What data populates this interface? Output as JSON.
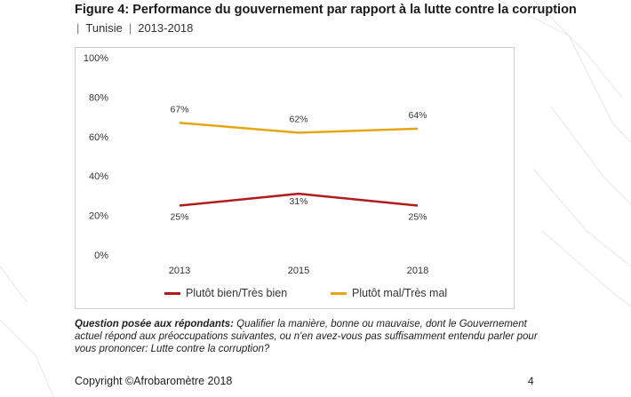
{
  "title": "Figure 4: Performance du gouvernement par rapport à la lutte contre la corruption",
  "subtitle": {
    "country": "Tunisie",
    "years": "2013-2018"
  },
  "chart_data": {
    "type": "line",
    "x": [
      "2013",
      "2015",
      "2018"
    ],
    "y_ticks": [
      "0%",
      "20%",
      "40%",
      "60%",
      "80%",
      "100%"
    ],
    "ylim": [
      0,
      100
    ],
    "grid": false,
    "legend_position": "bottom",
    "series": [
      {
        "name": "Plutôt bien/Très bien",
        "values": [
          25,
          31,
          25
        ],
        "labels": [
          "25%",
          "31%",
          "25%"
        ],
        "color": "#b01c1c"
      },
      {
        "name": "Plutôt mal/Très mal",
        "values": [
          67,
          62,
          64
        ],
        "labels": [
          "67%",
          "62%",
          "64%"
        ],
        "color": "#e6a515"
      }
    ]
  },
  "question": {
    "label": "Question posée aux répondants:",
    "text": "Qualifier la manière, bonne ou mauvaise, dont le Gouvernement actuel répond aux préoccupations suivantes, ou n'en avez-vous pas suffisamment entendu parler pour vous prononcer: Lutte contre la corruption?"
  },
  "footer": {
    "copyright": "Copyright ©Afrobaromètre 2018",
    "page": "4"
  }
}
